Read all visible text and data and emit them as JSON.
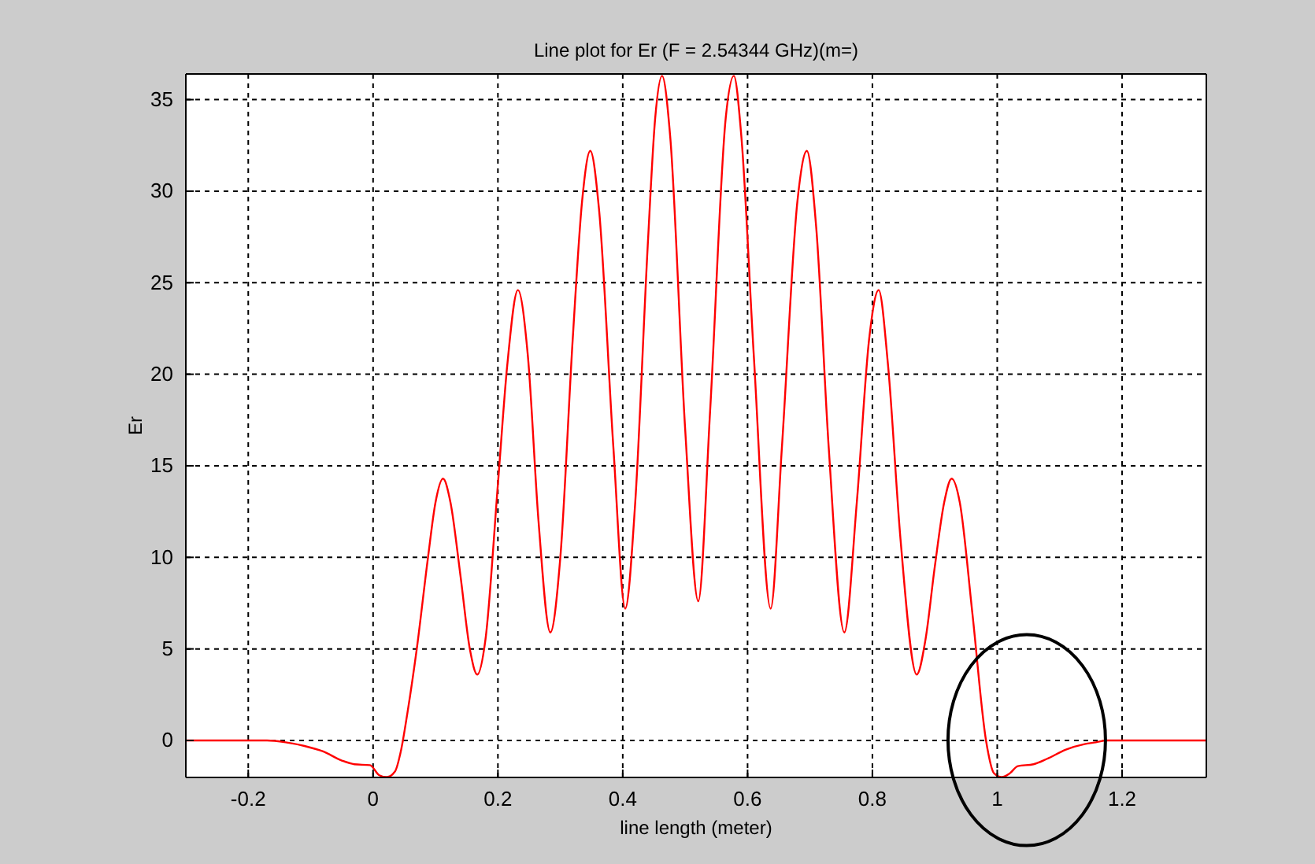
{
  "chart_data": {
    "type": "line",
    "title": "Line plot for Er (F =   2.54344 GHz)(m=)",
    "xlabel": "line length (meter)",
    "ylabel": "Er",
    "x": [
      -0.3,
      -0.17,
      -0.14,
      -0.11,
      -0.08,
      -0.05,
      -0.03,
      -0.005,
      0.01,
      0.022,
      0.035,
      0.045,
      0.055,
      0.07,
      0.088,
      0.1,
      0.112,
      0.124,
      0.14,
      0.155,
      0.167,
      0.18,
      0.2,
      0.215,
      0.232,
      0.248,
      0.265,
      0.284,
      0.3,
      0.32,
      0.335,
      0.348,
      0.362,
      0.385,
      0.404,
      0.42,
      0.44,
      0.452,
      0.463,
      0.476,
      0.5,
      0.521,
      0.54,
      0.565,
      0.578,
      0.59,
      0.61,
      0.637,
      0.655,
      0.68,
      0.695,
      0.71,
      0.73,
      0.755,
      0.775,
      0.795,
      0.81,
      0.825,
      0.845,
      0.871,
      0.885,
      0.9,
      0.915,
      0.927,
      0.94,
      0.96,
      0.982,
      0.995,
      1.0075,
      1.02,
      1.033,
      1.058,
      1.08,
      1.11,
      1.14,
      1.158,
      1.175,
      1.335
    ],
    "series": [
      {
        "color": "#ff0000",
        "values": [
          0,
          0,
          -0.1,
          -0.3,
          -0.6,
          -1.1,
          -1.3,
          -1.35,
          -1.9,
          -2.0,
          -1.7,
          -0.5,
          1.5,
          5,
          10,
          13,
          14.3,
          13,
          9,
          5,
          3.6,
          5.5,
          14,
          20.5,
          24.6,
          21,
          12,
          5.9,
          10,
          22,
          29.5,
          32.2,
          29,
          16,
          7.2,
          13,
          27,
          34,
          36.3,
          33,
          17,
          7.6,
          18,
          34,
          36.3,
          33,
          21,
          7.2,
          16,
          29.5,
          32.2,
          28,
          16,
          5.9,
          13,
          22,
          24.6,
          20.5,
          11,
          3.6,
          5.5,
          9.5,
          13,
          14.3,
          13,
          7,
          0,
          -1.8,
          -2.0,
          -1.8,
          -1.4,
          -1.3,
          -1.0,
          -0.5,
          -0.2,
          -0.1,
          0,
          0
        ]
      }
    ],
    "xlim": [
      -0.3,
      1.335
    ],
    "ylim": [
      -2.02,
      36.4
    ],
    "xticks": [
      -0.2,
      0,
      0.2,
      0.4,
      0.6,
      0.8,
      1,
      1.2
    ],
    "yticks": [
      0,
      5,
      10,
      15,
      20,
      25,
      30,
      35
    ],
    "grid": true,
    "line_style": "solid"
  }
}
